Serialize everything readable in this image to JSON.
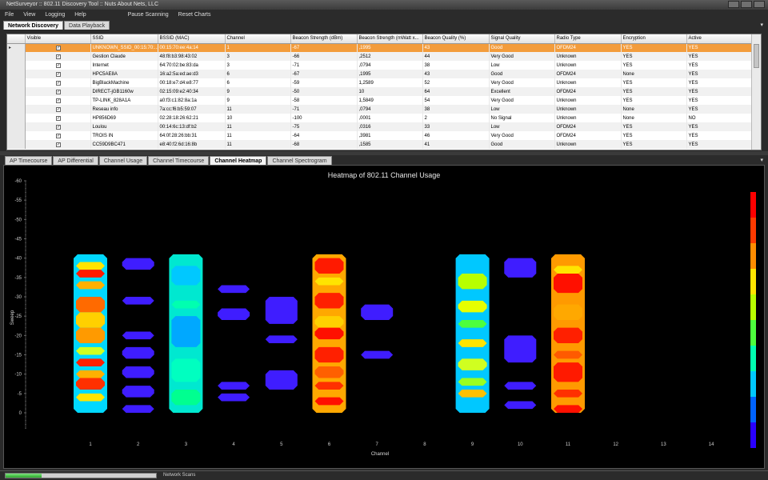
{
  "window": {
    "title": "NetSurveyor :: 802.11 Discovery Tool :: Nuts About Nets, LLC"
  },
  "menu": [
    "File",
    "View",
    "Logging",
    "Help"
  ],
  "actions": [
    "Pause Scanning",
    "Reset Charts"
  ],
  "top_tabs": [
    {
      "label": "Network Discovery",
      "active": true
    },
    {
      "label": "Data Playback",
      "active": false
    }
  ],
  "grid": {
    "columns": [
      "Visible",
      "SSID",
      "BSSID (MAC)",
      "Channel",
      "Beacon Strength (dBm)",
      "Beacon Strength (mWatt x...",
      "Beacon Quality (%)",
      "Signal Quality",
      "Radio Type",
      "Encryption",
      "Active"
    ],
    "rows": [
      [
        "✓",
        "UNKNOWN_SSID_00:15:70:...",
        "00:15:70:ee:4a:14",
        "1",
        "-67",
        ",1995",
        "43",
        "Good",
        "OFDM24",
        "YES",
        "YES"
      ],
      [
        "✓",
        "Gestion Claude",
        "48:f8:b3:98:43:02",
        "3",
        "-66",
        ",2512",
        "44",
        "Very Good",
        "Unknown",
        "YES",
        "YES"
      ],
      [
        "✓",
        "Internet",
        "64:70:02:be:83:da",
        "3",
        "-71",
        ",0794",
        "38",
        "Low",
        "Unknown",
        "YES",
        "YES"
      ],
      [
        "✓",
        "HPC5AE8A",
        "16:a2:5a:ed:ae:d3",
        "6",
        "-67",
        ",1995",
        "43",
        "Good",
        "OFDM24",
        "None",
        "YES"
      ],
      [
        "✓",
        "BigBlackMachine",
        "00:18:e7:d4:e8:77",
        "6",
        "-59",
        "1,2589",
        "52",
        "Very Good",
        "Unknown",
        "YES",
        "YES"
      ],
      [
        "✓",
        "DIRECT-jGB1160w",
        "02:15:09:e2:40:34",
        "9",
        "-50",
        "10",
        "64",
        "Excellent",
        "OFDM24",
        "YES",
        "YES"
      ],
      [
        "✓",
        "TP-LINK_828A1A",
        "a0:f3:c1:82:8a:1a",
        "9",
        "-58",
        "1,5849",
        "54",
        "Very Good",
        "Unknown",
        "YES",
        "YES"
      ],
      [
        "✓",
        "Reseau info",
        "7a:cc:f6:b5:59:07",
        "11",
        "-71",
        ",0794",
        "38",
        "Low",
        "Unknown",
        "None",
        "YES"
      ],
      [
        "✓",
        "HP856D69",
        "02:28:18:26:62:21",
        "10",
        "-100",
        ",0001",
        "2",
        "No Signal",
        "Unknown",
        "None",
        "NO"
      ],
      [
        "✓",
        "Loulou",
        "00:14:6c:13:df:b2",
        "11",
        "-75",
        ",0316",
        "33",
        "Low",
        "OFDM24",
        "YES",
        "YES"
      ],
      [
        "✓",
        "TROIS IN",
        "64:0f:28:26:bb:31",
        "11",
        "-64",
        ",3981",
        "46",
        "Very Good",
        "OFDM24",
        "YES",
        "YES"
      ],
      [
        "✓",
        "CC59D9BC471",
        "e8:40:f2:6d:16:8b",
        "11",
        "-68",
        ",1585",
        "41",
        "Good",
        "Unknown",
        "YES",
        "YES"
      ]
    ]
  },
  "bottom_tabs": [
    {
      "label": "AP Timecourse",
      "active": false
    },
    {
      "label": "AP Differential",
      "active": false
    },
    {
      "label": "Channel Usage",
      "active": false
    },
    {
      "label": "Channel Timecourse",
      "active": false
    },
    {
      "label": "Channel Heatmap",
      "active": true
    },
    {
      "label": "Channel Spectrogram",
      "active": false
    }
  ],
  "status": {
    "label": "Network Scans",
    "progress": 0.24
  },
  "colors": {
    "selected_row": "#f39c3c",
    "heat_scale": [
      "#2a00ff",
      "#0063ff",
      "#00c8ff",
      "#00ffb0",
      "#4dff3d",
      "#b8ff00",
      "#ffe400",
      "#ff8c00",
      "#ff3a00",
      "#ff0000"
    ]
  },
  "chart_data": {
    "type": "heatmap",
    "title": "Heatmap of 802.11 Channel Usage",
    "xlabel": "Channel",
    "ylabel": "Sweep",
    "x_ticks": [
      "1",
      "2",
      "3",
      "4",
      "5",
      "6",
      "7",
      "8",
      "9",
      "10",
      "11",
      "12",
      "13",
      "14"
    ],
    "y_ticks": [
      "-60",
      "-55",
      "-50",
      "-45",
      "-40",
      "-35",
      "-30",
      "-25",
      "-20",
      "-15",
      "-10",
      "-5",
      "0"
    ],
    "ylim": [
      -60,
      0
    ],
    "channels": [
      {
        "channel": 1,
        "segments": [
          [
            -41,
            0,
            "#00d8ff"
          ],
          [
            -39,
            -37,
            "#ffe400"
          ],
          [
            -37,
            -35,
            "#ff1a00"
          ],
          [
            -34,
            -32,
            "#ffb000"
          ],
          [
            -30,
            -26,
            "#ff6a00"
          ],
          [
            -26,
            -22,
            "#ffd000"
          ],
          [
            -22,
            -18,
            "#ff9a00"
          ],
          [
            -17,
            -15,
            "#d0ff20"
          ],
          [
            -14,
            -12,
            "#ff2000"
          ],
          [
            -11,
            -9,
            "#ffb000"
          ],
          [
            -9,
            -6,
            "#ff3000"
          ],
          [
            -5,
            -3,
            "#ffe400"
          ]
        ]
      },
      {
        "channel": 2,
        "segments": [
          [
            -40,
            -37,
            "#3f1dff"
          ],
          [
            -30,
            -28,
            "#3f1dff"
          ],
          [
            -21,
            -19,
            "#3f1dff"
          ],
          [
            -17,
            -14,
            "#3f1dff"
          ],
          [
            -12,
            -9,
            "#3f1dff"
          ],
          [
            -7,
            -4,
            "#3f1dff"
          ],
          [
            -2,
            0,
            "#3f1dff"
          ]
        ]
      },
      {
        "channel": 3,
        "segments": [
          [
            -41,
            0,
            "#00e8d0"
          ],
          [
            -38,
            -33,
            "#00c8ff"
          ],
          [
            -29,
            -27,
            "#00ffb0"
          ],
          [
            -25,
            -17,
            "#00a8ff"
          ],
          [
            -14,
            -8,
            "#00ffc0"
          ],
          [
            -6,
            -2,
            "#00ff90"
          ]
        ]
      },
      {
        "channel": 4,
        "segments": [
          [
            -33,
            -31,
            "#3f1dff"
          ],
          [
            -27,
            -24,
            "#3f1dff"
          ],
          [
            -8,
            -6,
            "#3f1dff"
          ],
          [
            -5,
            -3,
            "#3f1dff"
          ]
        ]
      },
      {
        "channel": 5,
        "segments": [
          [
            -30,
            -23,
            "#3f1dff"
          ],
          [
            -20,
            -18,
            "#3f1dff"
          ],
          [
            -11,
            -6,
            "#3f1dff"
          ]
        ]
      },
      {
        "channel": 6,
        "segments": [
          [
            -41,
            0,
            "#ffa800"
          ],
          [
            -40,
            -36,
            "#ff1a00"
          ],
          [
            -35,
            -33,
            "#ffe400"
          ],
          [
            -31,
            -27,
            "#ff2000"
          ],
          [
            -25,
            -22,
            "#ffd000"
          ],
          [
            -22,
            -19,
            "#ff1000"
          ],
          [
            -17,
            -13,
            "#ff2000"
          ],
          [
            -12,
            -9,
            "#ff6000"
          ],
          [
            -8,
            -6,
            "#ff3000"
          ],
          [
            -4,
            -2,
            "#ff1000"
          ]
        ]
      },
      {
        "channel": 7,
        "segments": [
          [
            -28,
            -24,
            "#3f1dff"
          ],
          [
            -16,
            -14,
            "#3f1dff"
          ]
        ]
      },
      {
        "channel": 9,
        "segments": [
          [
            -41,
            0,
            "#00c8ff"
          ],
          [
            -36,
            -32,
            "#b8ff00"
          ],
          [
            -29,
            -26,
            "#e6ff00"
          ],
          [
            -24,
            -22,
            "#4dff3d"
          ],
          [
            -19,
            -17,
            "#ffe400"
          ],
          [
            -14,
            -11,
            "#d0ff20"
          ],
          [
            -9,
            -7,
            "#9aff20"
          ],
          [
            -6,
            -4,
            "#ffc000"
          ]
        ]
      },
      {
        "channel": 10,
        "segments": [
          [
            -40,
            -35,
            "#3f1dff"
          ],
          [
            -20,
            -13,
            "#3f1dff"
          ],
          [
            -8,
            -6,
            "#3f1dff"
          ],
          [
            -3,
            -1,
            "#3f1dff"
          ]
        ]
      },
      {
        "channel": 11,
        "segments": [
          [
            -41,
            0,
            "#ff9a00"
          ],
          [
            -38,
            -36,
            "#ffe400"
          ],
          [
            -36,
            -31,
            "#ff1000"
          ],
          [
            -28,
            -24,
            "#ffa800"
          ],
          [
            -22,
            -18,
            "#ff2000"
          ],
          [
            -16,
            -14,
            "#ff5a00"
          ],
          [
            -13,
            -8,
            "#ff1a00"
          ],
          [
            -6,
            -4,
            "#ff3000"
          ],
          [
            -2,
            0,
            "#ff1000"
          ]
        ]
      }
    ]
  }
}
